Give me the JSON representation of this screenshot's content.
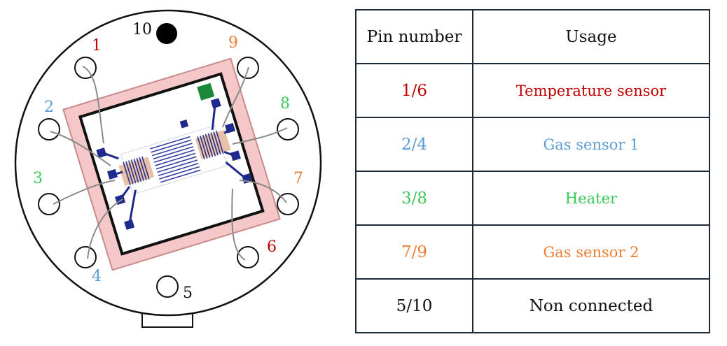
{
  "colors": {
    "red": "#c00000",
    "blue": "#5b9bd5",
    "green": "#3cc85a",
    "orange": "#ed7d31",
    "black": "#111111"
  },
  "pins": [
    {
      "number": "1",
      "color": "red"
    },
    {
      "number": "2",
      "color": "blue"
    },
    {
      "number": "3",
      "color": "green"
    },
    {
      "number": "4",
      "color": "blue"
    },
    {
      "number": "5",
      "color": "black"
    },
    {
      "number": "6",
      "color": "red"
    },
    {
      "number": "7",
      "color": "orange"
    },
    {
      "number": "8",
      "color": "green"
    },
    {
      "number": "9",
      "color": "orange"
    },
    {
      "number": "10",
      "color": "black"
    }
  ],
  "table": {
    "headers": {
      "pin": "Pin number",
      "usage": "Usage"
    },
    "rows": [
      {
        "pins": "1/6",
        "usage": "Temperature sensor",
        "color": "red"
      },
      {
        "pins": "2/4",
        "usage": "Gas sensor 1",
        "color": "blue"
      },
      {
        "pins": "3/8",
        "usage": "Heater",
        "color": "green"
      },
      {
        "pins": "7/9",
        "usage": "Gas sensor 2",
        "color": "orange"
      },
      {
        "pins": "5/10",
        "usage": "Non connected",
        "color": "black"
      }
    ]
  }
}
